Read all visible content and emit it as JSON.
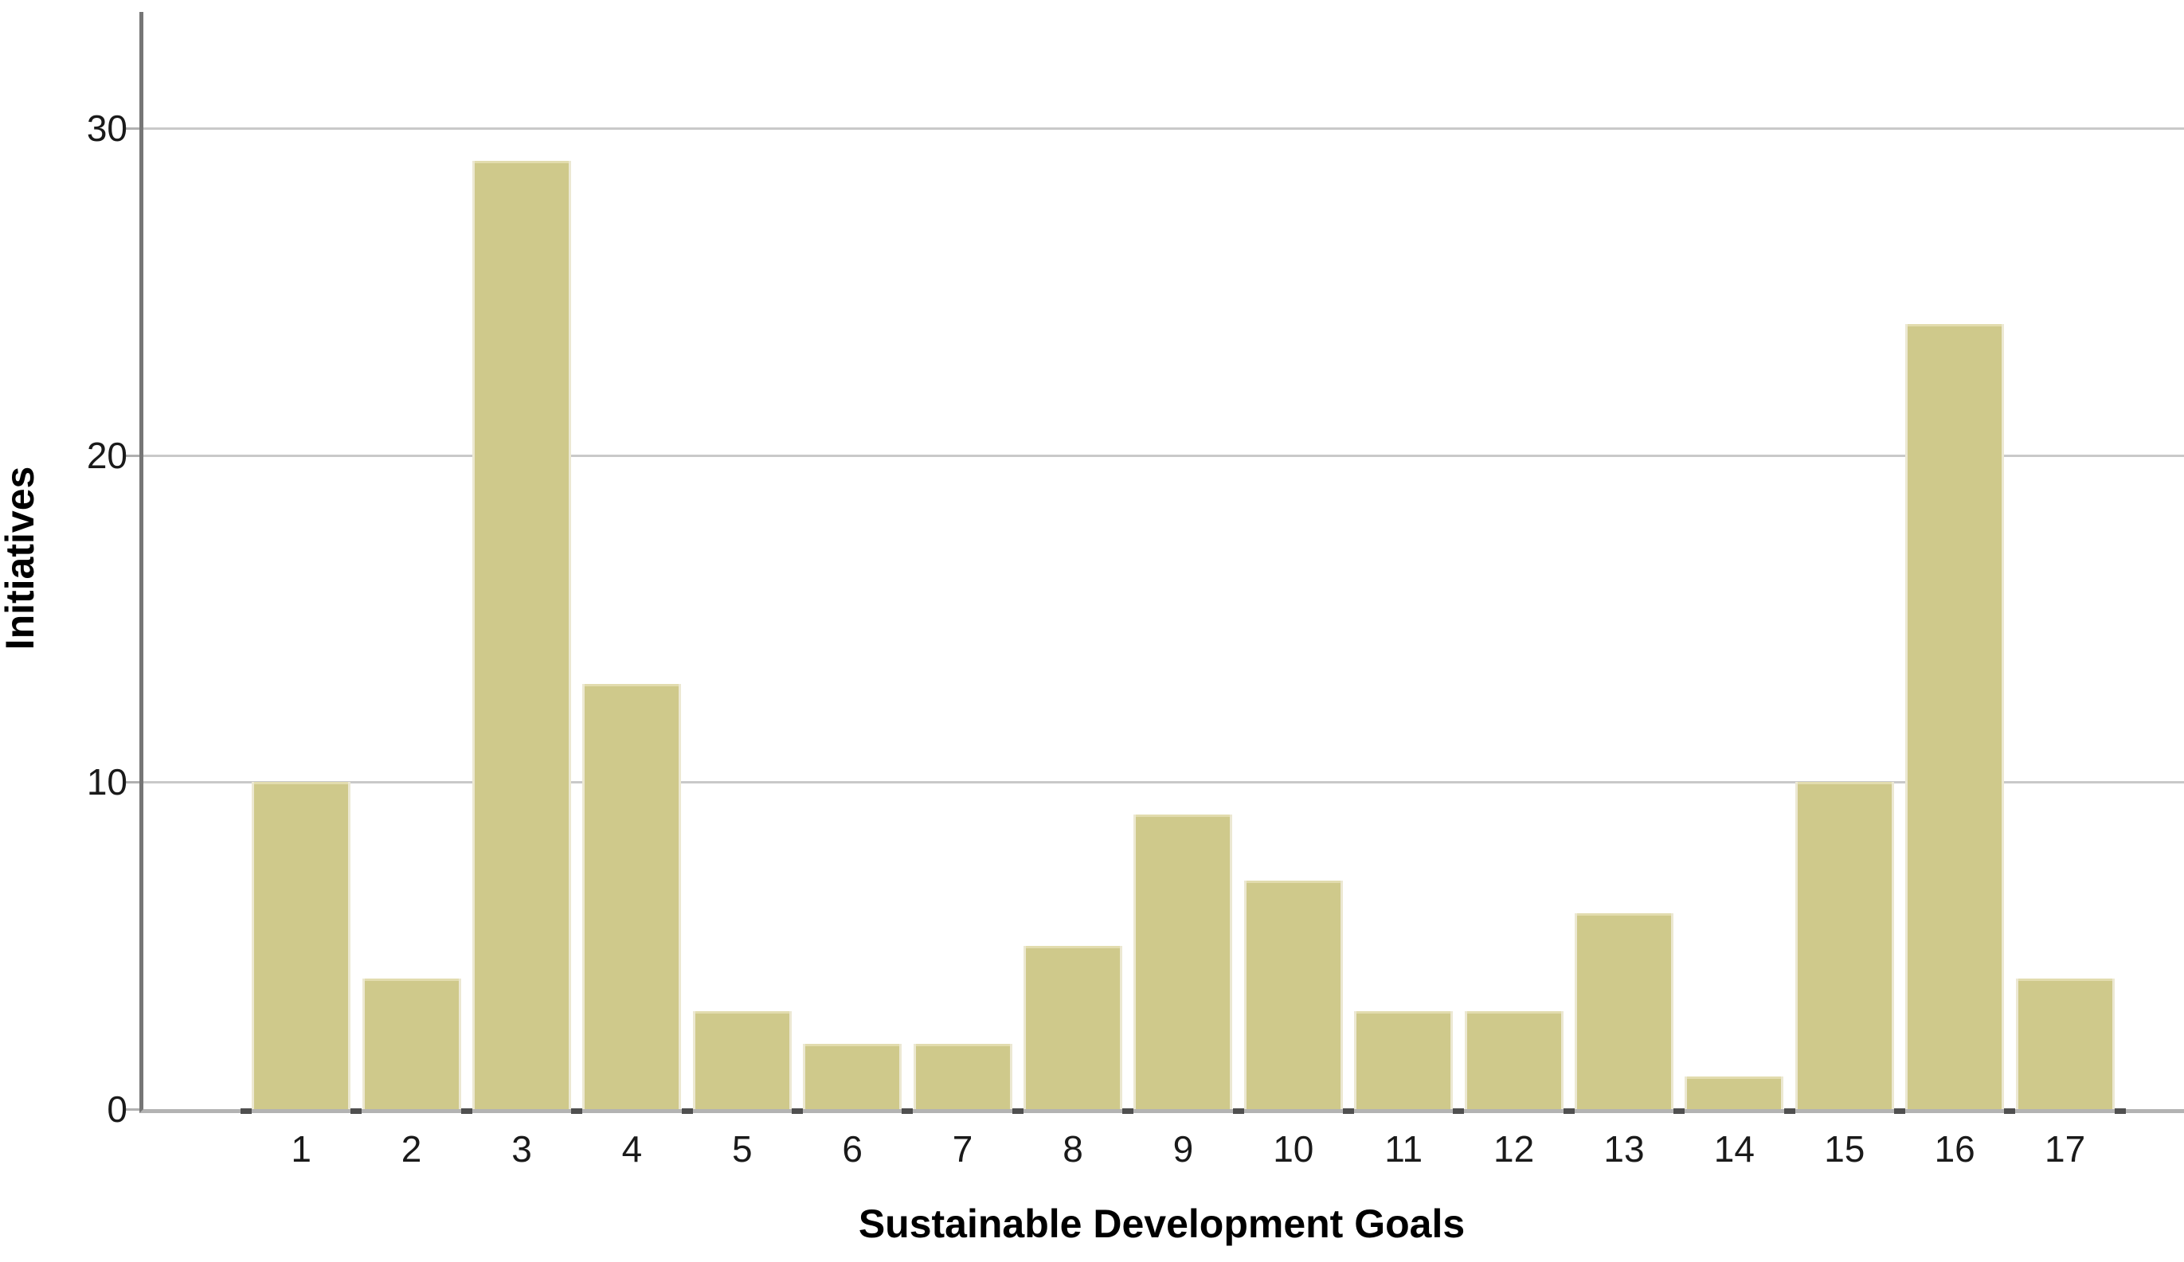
{
  "chart_data": {
    "type": "bar",
    "title": "",
    "xlabel": "Sustainable Development Goals",
    "ylabel": "Initiatives",
    "categories": [
      "1",
      "2",
      "3",
      "4",
      "5",
      "6",
      "7",
      "8",
      "9",
      "10",
      "11",
      "12",
      "13",
      "14",
      "15",
      "16",
      "17"
    ],
    "values": [
      10,
      4,
      29,
      13,
      3,
      2,
      2,
      5,
      9,
      7,
      3,
      3,
      6,
      1,
      10,
      24,
      4
    ],
    "yticks": [
      0,
      10,
      20,
      30
    ],
    "ylim": [
      0,
      33.5
    ],
    "grid": "horizontal gridlines at 10, 20, 30",
    "legend": "none",
    "colors": {
      "bar_fill": "#cfc98b",
      "bar_edge": "#ece8d2",
      "gridline": "#c9c9c9",
      "y_axis_line": "#767676",
      "x_axis_line": "#b3b3b3",
      "tick_mark": "#4f4f4f",
      "text": "#1a1a1a",
      "background": "#ffffff"
    }
  }
}
